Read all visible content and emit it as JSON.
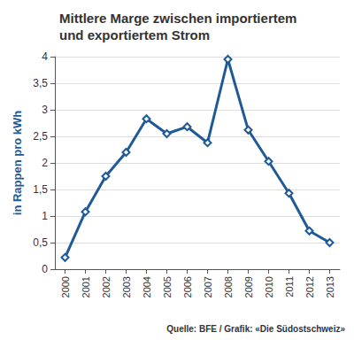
{
  "chart_data": {
    "type": "line",
    "title": "Mittlere Marge zwischen importiertem und exportiertem Strom",
    "y_label": "in Rappen pro kWh",
    "annotations": [
      "Quelle: BFE / Grafik: «Die Südostschweiz»"
    ],
    "categories": [
      "2000",
      "2001",
      "2002",
      "2003",
      "2004",
      "2005",
      "2006",
      "2007",
      "2008",
      "2009",
      "2010",
      "2011",
      "2012",
      "2013"
    ],
    "values": [
      0.22,
      1.08,
      1.75,
      2.2,
      2.83,
      2.55,
      2.68,
      2.38,
      3.95,
      2.62,
      2.03,
      1.43,
      0.72,
      0.5
    ],
    "color": "#1f5a96",
    "marker": "diamond",
    "ylim": [
      0,
      4
    ],
    "yticks": [
      0,
      {
        "value": 0.5,
        "label": "0,5"
      },
      1,
      {
        "value": 1.5,
        "label": "1,5"
      },
      2,
      {
        "value": 2.5,
        "label": "2,5"
      },
      3,
      {
        "value": 3.5,
        "label": "3,5"
      },
      4
    ],
    "grid": true
  }
}
